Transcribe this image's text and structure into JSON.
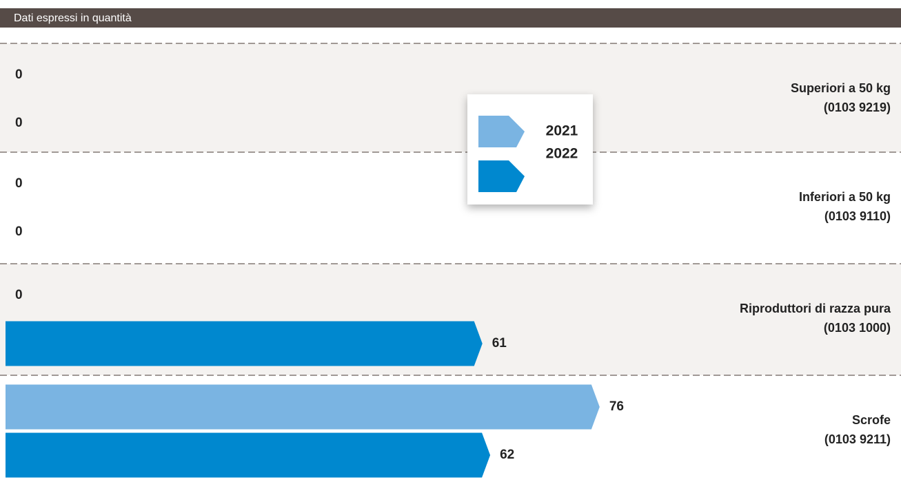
{
  "chart_data": {
    "type": "bar",
    "subtitle": "Dati espressi in quantità",
    "categories": [
      [
        "Superiori a 50 kg",
        "(0103 9219)"
      ],
      [
        "Inferiori a 50 kg",
        "(0103 9110)"
      ],
      [
        "Riproduttori di razza pura",
        "(0103 1000)"
      ],
      [
        "Scrofe",
        "(0103 9211)"
      ]
    ],
    "series": [
      {
        "name": "2021",
        "color": "#7ab4e2",
        "values": [
          0,
          0,
          0,
          76
        ]
      },
      {
        "name": "2022",
        "color": "#0088cf",
        "values": [
          0,
          0,
          61,
          62
        ]
      }
    ]
  }
}
